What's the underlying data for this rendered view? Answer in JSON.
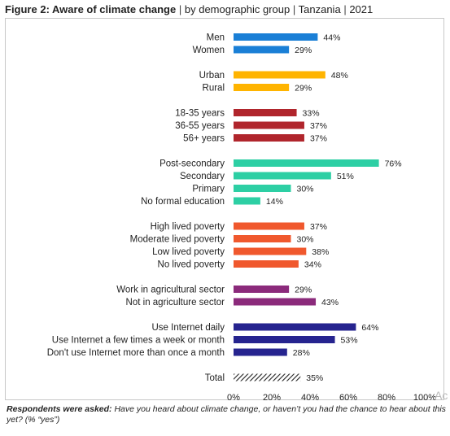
{
  "title": {
    "bold": "Figure 2: Aware of climate change",
    "part2": "by demographic group",
    "part3": "Tanzania",
    "part4": "2021",
    "separator": "|"
  },
  "note": {
    "lead": "Respondents were asked:",
    "text": "Have you heard about climate change, or haven’t you had the chance to hear about this yet? (% “yes”)"
  },
  "watermark": "Ac",
  "chart_data": {
    "type": "bar",
    "orientation": "horizontal",
    "xlim": [
      0,
      100
    ],
    "ticks": [
      "0%",
      "20%",
      "40%",
      "60%",
      "80%",
      "100%"
    ],
    "grid": false,
    "categories": [
      {
        "label": "Men",
        "value": 44,
        "value_label": "44%",
        "color": "#1a7fd6",
        "group": 0
      },
      {
        "label": "Women",
        "value": 29,
        "value_label": "29%",
        "color": "#1a7fd6",
        "group": 0
      },
      {
        "label": "Urban",
        "value": 48,
        "value_label": "48%",
        "color": "#ffb400",
        "group": 1
      },
      {
        "label": "Rural",
        "value": 29,
        "value_label": "29%",
        "color": "#ffb400",
        "group": 1
      },
      {
        "label": "18-35 years",
        "value": 33,
        "value_label": "33%",
        "color": "#b0252c",
        "group": 2
      },
      {
        "label": "36-55 years",
        "value": 37,
        "value_label": "37%",
        "color": "#b0252c",
        "group": 2
      },
      {
        "label": "56+ years",
        "value": 37,
        "value_label": "37%",
        "color": "#b0252c",
        "group": 2
      },
      {
        "label": "Post-secondary",
        "value": 76,
        "value_label": "76%",
        "color": "#2dcfa4",
        "group": 3
      },
      {
        "label": "Secondary",
        "value": 51,
        "value_label": "51%",
        "color": "#2dcfa4",
        "group": 3
      },
      {
        "label": "Primary",
        "value": 30,
        "value_label": "30%",
        "color": "#2dcfa4",
        "group": 3
      },
      {
        "label": "No formal education",
        "value": 14,
        "value_label": "14%",
        "color": "#2dcfa4",
        "group": 3
      },
      {
        "label": "High lived poverty",
        "value": 37,
        "value_label": "37%",
        "color": "#f0582d",
        "group": 4
      },
      {
        "label": "Moderate lived poverty",
        "value": 30,
        "value_label": "30%",
        "color": "#f0582d",
        "group": 4
      },
      {
        "label": "Low lived poverty",
        "value": 38,
        "value_label": "38%",
        "color": "#f0582d",
        "group": 4
      },
      {
        "label": "No lived poverty",
        "value": 34,
        "value_label": "34%",
        "color": "#f0582d",
        "group": 4
      },
      {
        "label": "Work in agricultural sector",
        "value": 29,
        "value_label": "29%",
        "color": "#8b2a7b",
        "group": 5
      },
      {
        "label": "Not in agriculture sector",
        "value": 43,
        "value_label": "43%",
        "color": "#8b2a7b",
        "group": 5
      },
      {
        "label": "Use Internet daily",
        "value": 64,
        "value_label": "64%",
        "color": "#26248f",
        "group": 6
      },
      {
        "label": "Use Internet a few times a week or month",
        "value": 53,
        "value_label": "53%",
        "color": "#26248f",
        "group": 6
      },
      {
        "label": "Don't use Internet more than once a month",
        "value": 28,
        "value_label": "28%",
        "color": "#26248f",
        "group": 6
      },
      {
        "label": "Total",
        "value": 35,
        "value_label": "35%",
        "color": "#222222",
        "pattern": "hatched",
        "group": 7
      }
    ]
  }
}
